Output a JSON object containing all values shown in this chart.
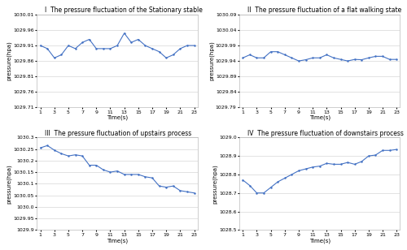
{
  "subplot1": {
    "title": "I  The pressure fluctuation of the Stationary stable",
    "ylabel": "pressure(hpa)",
    "xlabel": "Time(s)",
    "x": [
      1,
      2,
      3,
      4,
      5,
      6,
      7,
      8,
      9,
      10,
      11,
      12,
      13,
      14,
      15,
      16,
      17,
      18,
      19,
      20,
      21,
      22,
      23
    ],
    "y": [
      1029.91,
      1029.9,
      1029.87,
      1029.88,
      1029.91,
      1029.9,
      1029.92,
      1029.93,
      1029.9,
      1029.9,
      1029.9,
      1029.91,
      1029.95,
      1029.92,
      1029.93,
      1029.91,
      1029.9,
      1029.89,
      1029.87,
      1029.88,
      1029.9,
      1029.91,
      1029.91
    ],
    "ylim": [
      1029.71,
      1030.01
    ],
    "yticks": [
      1029.71,
      1029.76,
      1029.81,
      1029.86,
      1029.91,
      1029.96,
      1030.01
    ],
    "xticks": [
      1,
      3,
      5,
      7,
      9,
      11,
      13,
      15,
      17,
      19,
      21,
      23
    ]
  },
  "subplot2": {
    "title": "II  The pressure fluctuation of a flat walking state",
    "ylabel": "pressure(hpa)",
    "xlabel": "Time(s)",
    "x": [
      1,
      2,
      3,
      4,
      5,
      6,
      7,
      8,
      9,
      10,
      11,
      12,
      13,
      14,
      15,
      16,
      17,
      18,
      19,
      20,
      21,
      22,
      23
    ],
    "y": [
      1029.95,
      1029.96,
      1029.95,
      1029.95,
      1029.97,
      1029.97,
      1029.96,
      1029.95,
      1029.94,
      1029.944,
      1029.95,
      1029.95,
      1029.96,
      1029.95,
      1029.945,
      1029.94,
      1029.945,
      1029.944,
      1029.95,
      1029.955,
      1029.955,
      1029.945,
      1029.945
    ],
    "ylim": [
      1029.79,
      1030.09
    ],
    "yticks": [
      1029.79,
      1029.84,
      1029.89,
      1029.94,
      1029.99,
      1030.04,
      1030.09
    ],
    "xticks": [
      1,
      3,
      5,
      7,
      9,
      11,
      13,
      15,
      17,
      19,
      21,
      23
    ]
  },
  "subplot3": {
    "title": "III  The pressure fluctuation of upstairs process",
    "ylabel": "pressure(hpa)",
    "xlabel": "Time(s)",
    "x": [
      1,
      2,
      3,
      4,
      5,
      6,
      7,
      8,
      9,
      10,
      11,
      12,
      13,
      14,
      15,
      16,
      17,
      18,
      19,
      20,
      21,
      22,
      23
    ],
    "y": [
      1030.255,
      1030.265,
      1030.245,
      1030.23,
      1030.22,
      1030.225,
      1030.22,
      1030.18,
      1030.18,
      1030.16,
      1030.15,
      1030.155,
      1030.14,
      1030.14,
      1030.14,
      1030.13,
      1030.125,
      1030.09,
      1030.085,
      1030.09,
      1030.07,
      1030.065,
      1030.06
    ],
    "ylim": [
      1029.9,
      1030.3
    ],
    "yticks": [
      1029.9,
      1029.95,
      1030.0,
      1030.05,
      1030.1,
      1030.15,
      1030.2,
      1030.25,
      1030.3
    ],
    "xticks": [
      1,
      3,
      5,
      7,
      9,
      11,
      13,
      15,
      17,
      19,
      21,
      23
    ]
  },
  "subplot4": {
    "title": "IV  The pressure fluctuation of downstairs process",
    "ylabel": "pressure(hpa)",
    "xlabel": "Time(s)",
    "x": [
      1,
      2,
      3,
      4,
      5,
      6,
      7,
      8,
      9,
      10,
      11,
      12,
      13,
      14,
      15,
      16,
      17,
      18,
      19,
      20,
      21,
      22,
      23
    ],
    "y": [
      1028.77,
      1028.74,
      1028.7,
      1028.7,
      1028.73,
      1028.76,
      1028.78,
      1028.8,
      1028.82,
      1028.83,
      1028.84,
      1028.845,
      1028.86,
      1028.855,
      1028.855,
      1028.865,
      1028.855,
      1028.87,
      1028.9,
      1028.905,
      1028.93,
      1028.93,
      1028.935
    ],
    "ylim": [
      1028.5,
      1029.0
    ],
    "yticks": [
      1028.5,
      1028.6,
      1028.7,
      1028.8,
      1028.9,
      1029.0
    ],
    "xticks": [
      1,
      3,
      5,
      7,
      9,
      11,
      13,
      15,
      17,
      19,
      21,
      23
    ]
  },
  "line_color": "#4472C4",
  "line_width": 0.8,
  "bg_color": "#ffffff",
  "grid_color": "#cccccc",
  "title_fontsize": 5.5,
  "label_fontsize": 5.0,
  "tick_fontsize": 4.5
}
